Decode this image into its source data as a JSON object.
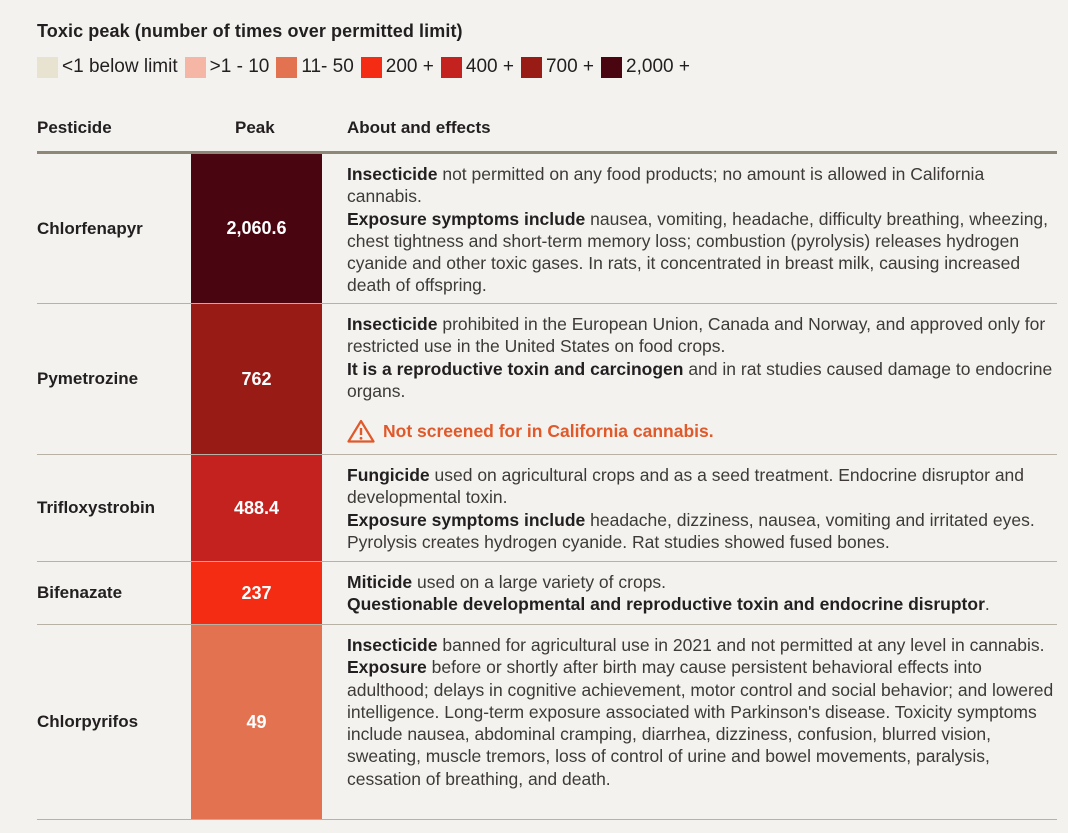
{
  "legend": {
    "title": "Toxic peak (number of times over permitted limit)",
    "items": [
      {
        "label": "<1 below limit",
        "color": "#e8e2d0"
      },
      {
        "label": ">1 - 10",
        "color": "#f5b6a6"
      },
      {
        "label": "11- 50",
        "color": "#e37350"
      },
      {
        "label": "200 +",
        "color": "#f42c14"
      },
      {
        "label": "400 +",
        "color": "#c4221e"
      },
      {
        "label": "700 +",
        "color": "#991b16"
      },
      {
        "label": "2,000 +",
        "color": "#4a0610"
      }
    ]
  },
  "table": {
    "headers": {
      "pesticide": "Pesticide",
      "peak": "Peak",
      "about": "About and effects"
    },
    "rows": [
      {
        "name": "Chlorfenapyr",
        "peak": "2,060.6",
        "color": "#4a0610",
        "p1_bold": "Insecticide",
        "p1_text": " not permitted on any food products; no amount is allowed in California cannabis.",
        "p2_bold": "Exposure symptoms include",
        "p2_text": " nausea, vomiting, headache, difficulty breathing, wheezing, chest tightness and short-term memory loss; combustion (pyrolysis) releases hydrogen cyanide and other toxic gases. In rats, it concentrated in breast milk, causing increased death of offspring."
      },
      {
        "name": "Pymetrozine",
        "peak": "762",
        "color": "#991b16",
        "p1_bold": "Insecticide",
        "p1_text": " prohibited in the European Union, Canada and Norway, and approved only for restricted use in the United States on food crops.",
        "p2_bold": "It is a reproductive toxin and carcinogen",
        "p2_text": " and in rat studies caused damage to endocrine organs.",
        "warning": "Not screened for in California cannabis."
      },
      {
        "name": "Trifloxystrobin",
        "peak": "488.4",
        "color": "#c4221e",
        "p1_bold": "Fungicide",
        "p1_text": " used on agricultural crops and as a seed treatment. Endocrine disruptor and developmental toxin.",
        "p2_bold": "Exposure symptoms include",
        "p2_text": " headache, dizziness, nausea, vomiting and irritated eyes. Pyrolysis creates hydrogen cyanide. Rat studies showed fused bones."
      },
      {
        "name": "Bifenazate",
        "peak": "237",
        "color": "#f42c14",
        "p1_bold": "Miticide",
        "p1_text": " used on a large variety of crops.",
        "p2_bold": "Questionable developmental and reproductive toxin and endocrine disruptor",
        "p2_text": "."
      },
      {
        "name": "Chlorpyrifos",
        "peak": "49",
        "color": "#e37350",
        "p1_bold": "Insecticide",
        "p1_text": " banned for agricultural use in 2021 and not permitted at any level in cannabis.",
        "p2_bold": "Exposure",
        "p2_text": " before or shortly after birth may cause persistent behavioral effects into adulthood; delays in cognitive achievement, motor control and social behavior; and lowered intelligence. Long-term exposure associated with Parkinson's disease. Toxicity symptoms include nausea, abdominal cramping, diarrhea, dizziness, confusion, blurred vision, sweating, muscle tremors, loss of control of urine and bowel movements, paralysis, cessation of breathing, and death."
      }
    ]
  }
}
